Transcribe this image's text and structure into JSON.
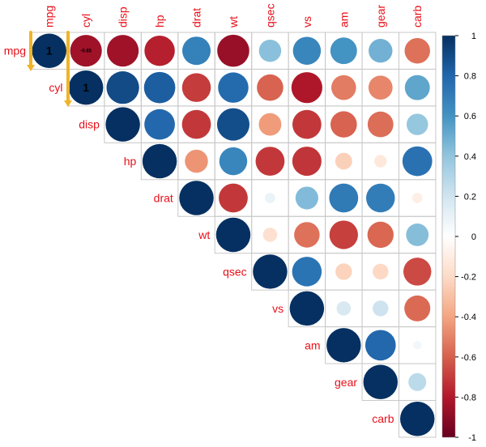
{
  "chart_data": {
    "type": "heatmap",
    "subtype": "correlation-circles-upper",
    "variables": [
      "mpg",
      "cyl",
      "disp",
      "hp",
      "drat",
      "wt",
      "qsec",
      "vs",
      "am",
      "gear",
      "carb"
    ],
    "matrix": [
      [
        1.0,
        -0.85,
        -0.85,
        -0.78,
        0.68,
        -0.87,
        0.42,
        0.66,
        0.6,
        0.48,
        -0.55
      ],
      [
        -0.85,
        1.0,
        0.9,
        0.83,
        -0.7,
        0.78,
        -0.59,
        -0.81,
        -0.52,
        -0.49,
        0.53
      ],
      [
        -0.85,
        0.9,
        1.0,
        0.79,
        -0.71,
        0.89,
        -0.43,
        -0.71,
        -0.59,
        -0.56,
        0.39
      ],
      [
        -0.78,
        0.83,
        0.79,
        1.0,
        -0.45,
        0.66,
        -0.71,
        -0.72,
        -0.24,
        -0.13,
        0.75
      ],
      [
        0.68,
        -0.7,
        -0.71,
        -0.45,
        1.0,
        -0.71,
        0.09,
        0.44,
        0.71,
        0.7,
        -0.09
      ],
      [
        -0.87,
        0.78,
        0.89,
        0.66,
        -0.71,
        1.0,
        -0.17,
        -0.55,
        -0.69,
        -0.58,
        0.43
      ],
      [
        0.42,
        -0.59,
        -0.43,
        -0.71,
        0.09,
        -0.17,
        1.0,
        0.74,
        -0.23,
        -0.21,
        -0.66
      ],
      [
        0.66,
        -0.81,
        -0.71,
        -0.72,
        0.44,
        -0.55,
        0.74,
        1.0,
        0.17,
        0.21,
        -0.57
      ],
      [
        0.6,
        -0.52,
        -0.59,
        -0.24,
        0.71,
        -0.69,
        -0.23,
        0.17,
        1.0,
        0.79,
        0.06
      ],
      [
        0.48,
        -0.49,
        -0.56,
        -0.13,
        0.7,
        -0.58,
        -0.21,
        0.21,
        0.79,
        1.0,
        0.27
      ],
      [
        -0.55,
        0.53,
        0.39,
        0.75,
        -0.09,
        0.43,
        -0.66,
        -0.57,
        0.06,
        0.27,
        1.0
      ]
    ],
    "cell_labels": [
      {
        "row": 0,
        "col": 0,
        "text": "1"
      },
      {
        "row": 0,
        "col": 1,
        "text": "-0.85"
      },
      {
        "row": 1,
        "col": 1,
        "text": "1"
      }
    ],
    "colorbar": {
      "range": [
        -1,
        1
      ],
      "ticks": [
        "1",
        "0.8",
        "0.6",
        "0.4",
        "0.2",
        "0",
        "-0.2",
        "-0.4",
        "-0.6",
        "-0.8",
        "-1"
      ],
      "colors": {
        "neg_strong": "#67001f",
        "neg_mid": "#d6604d",
        "neutral": "#f7f7f7",
        "pos_mid": "#4393c3",
        "pos_strong": "#053061"
      }
    },
    "label_color": "#e8101a",
    "arrow_color": "#f0b428",
    "grid": true
  }
}
